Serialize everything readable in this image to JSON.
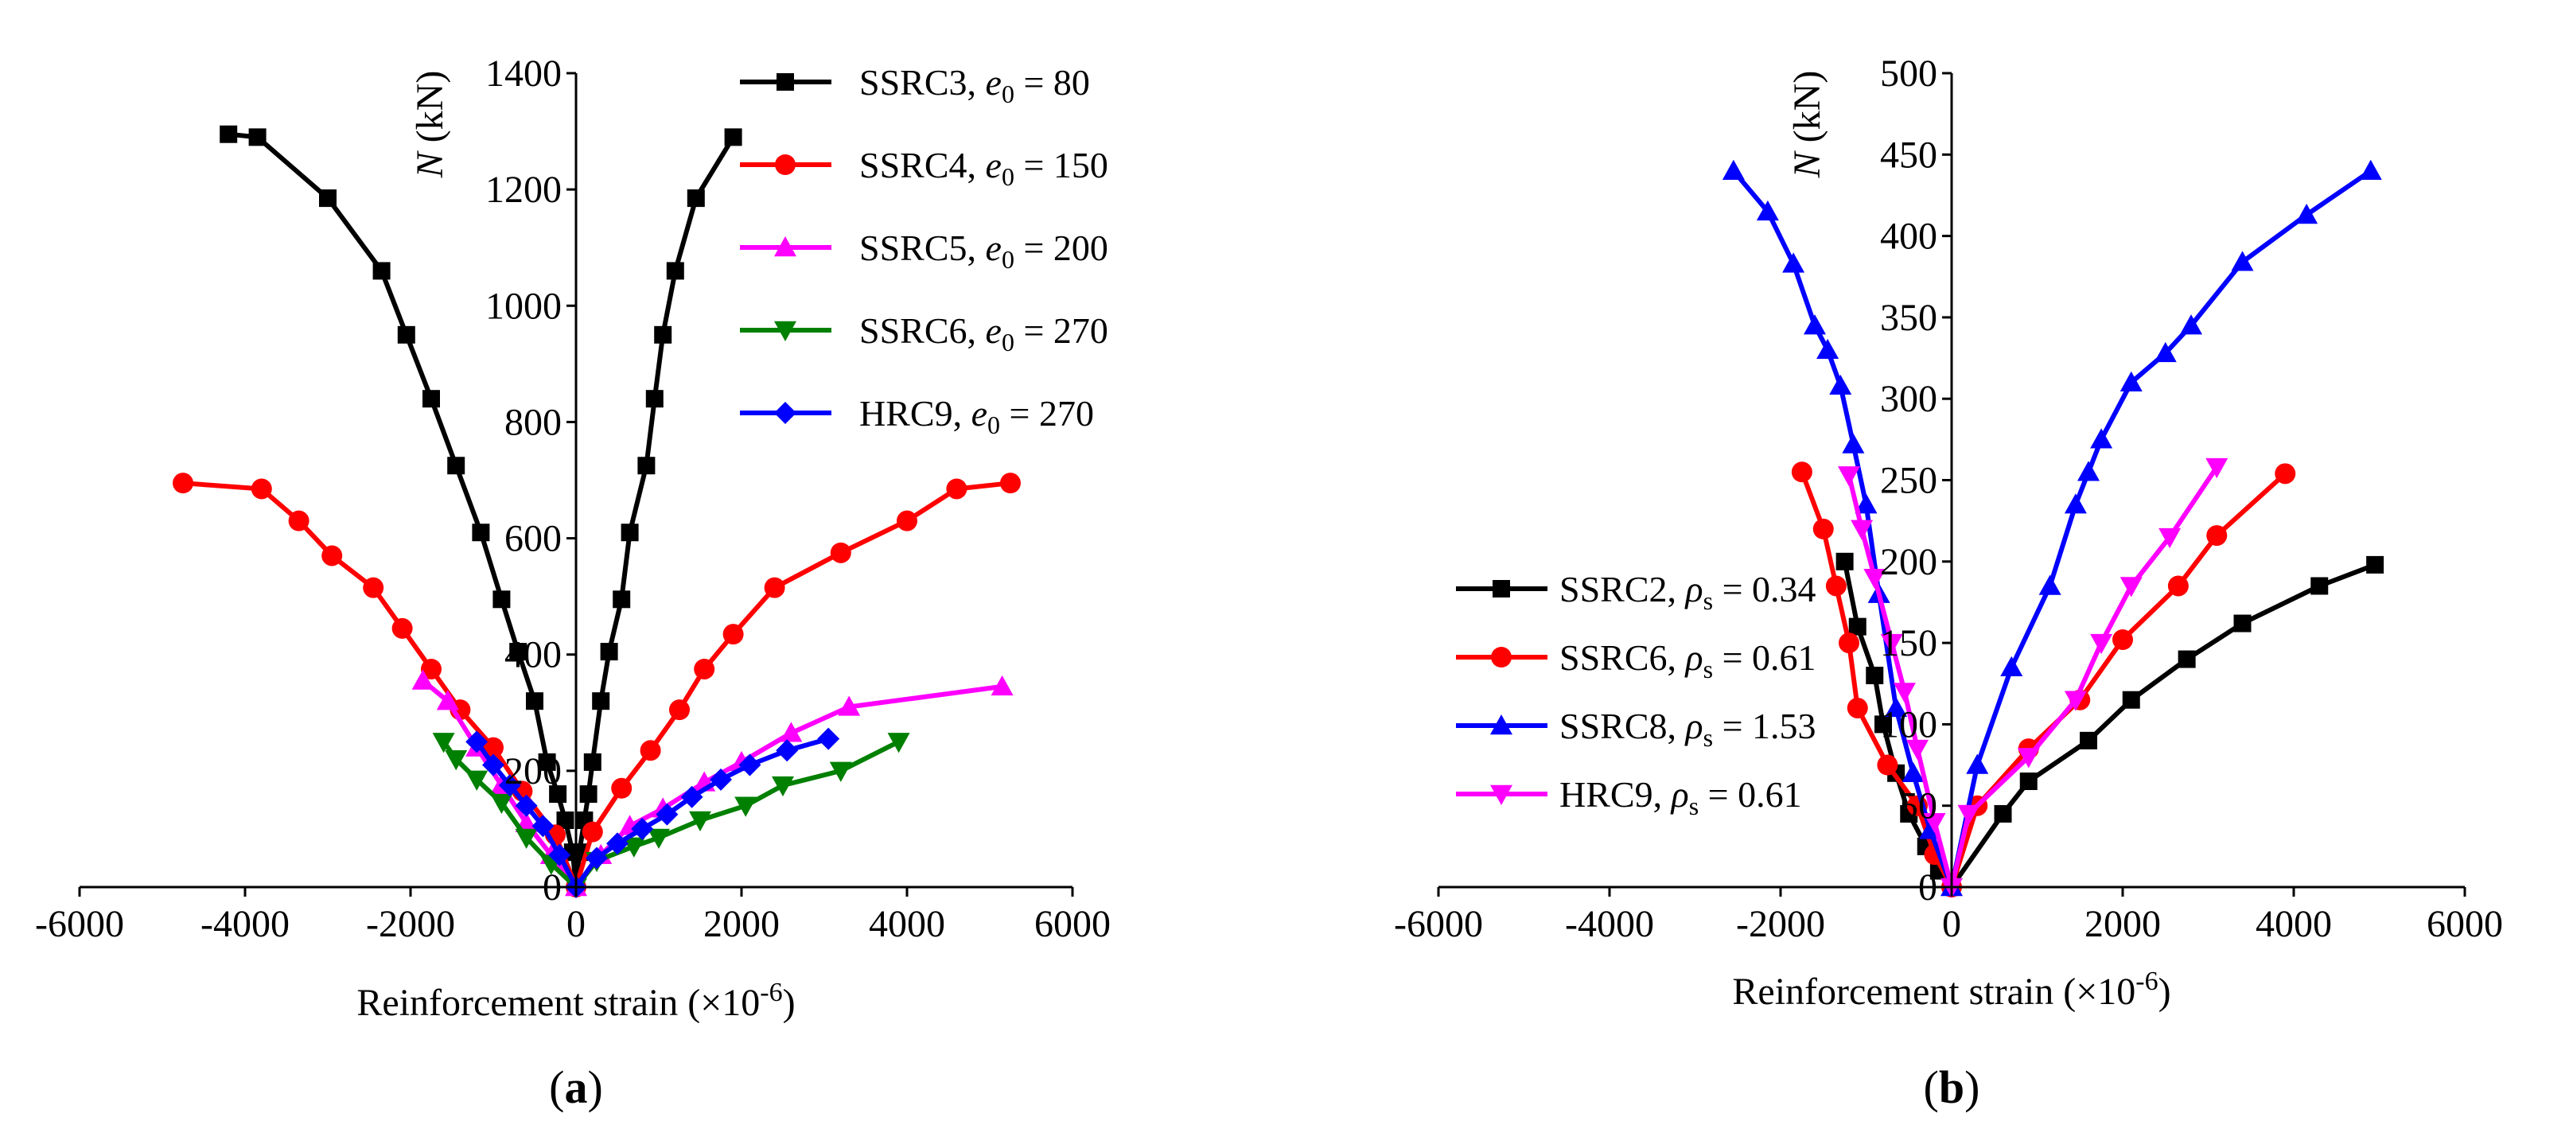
{
  "chart_data": [
    {
      "panel": "a",
      "panel_label": {
        "open": "(",
        "letter": "a",
        "close": ")"
      },
      "type": "line",
      "xlabel_main": "Reinforcement strain (×10",
      "xlabel_exp": "-6",
      "xlabel_close": ")",
      "ylabel_italic": "N",
      "ylabel_unit": " (kN)",
      "xlim": [
        -6000,
        6000
      ],
      "ylim": [
        0,
        1400
      ],
      "xticks": [
        -6000,
        -4000,
        -2000,
        0,
        2000,
        4000,
        6000
      ],
      "yticks": [
        0,
        200,
        400,
        600,
        800,
        1000,
        1200,
        1400
      ],
      "legend_position": "top-right",
      "series": [
        {
          "name": "SSRC3",
          "param": "e",
          "param_sub": "0",
          "param_value": "80",
          "color": "#000000",
          "marker": "square",
          "points": [
            [
              -4200,
              1295
            ],
            [
              -3850,
              1290
            ],
            [
              -3000,
              1185
            ],
            [
              -2350,
              1060
            ],
            [
              -2050,
              950
            ],
            [
              -1750,
              840
            ],
            [
              -1450,
              725
            ],
            [
              -1150,
              610
            ],
            [
              -900,
              495
            ],
            [
              -700,
              405
            ],
            [
              -500,
              320
            ],
            [
              -350,
              215
            ],
            [
              -220,
              160
            ],
            [
              -130,
              115
            ],
            [
              -40,
              60
            ],
            [
              0,
              0
            ],
            [
              40,
              60
            ],
            [
              100,
              115
            ],
            [
              150,
              160
            ],
            [
              200,
              215
            ],
            [
              300,
              320
            ],
            [
              400,
              405
            ],
            [
              550,
              495
            ],
            [
              650,
              610
            ],
            [
              850,
              725
            ],
            [
              950,
              840
            ],
            [
              1050,
              950
            ],
            [
              1200,
              1060
            ],
            [
              1450,
              1185
            ],
            [
              1900,
              1290
            ]
          ]
        },
        {
          "name": "SSRC4",
          "param": "e",
          "param_sub": "0",
          "param_value": "150",
          "color": "#ff0000",
          "marker": "circle",
          "points": [
            [
              -4750,
              695
            ],
            [
              -3800,
              685
            ],
            [
              -3350,
              630
            ],
            [
              -2950,
              570
            ],
            [
              -2450,
              515
            ],
            [
              -2100,
              445
            ],
            [
              -1750,
              375
            ],
            [
              -1400,
              305
            ],
            [
              -1000,
              240
            ],
            [
              -650,
              165
            ],
            [
              -250,
              90
            ],
            [
              0,
              0
            ],
            [
              200,
              95
            ],
            [
              550,
              170
            ],
            [
              900,
              235
            ],
            [
              1250,
              305
            ],
            [
              1550,
              375
            ],
            [
              1900,
              435
            ],
            [
              2400,
              515
            ],
            [
              3200,
              575
            ],
            [
              4000,
              630
            ],
            [
              4600,
              685
            ],
            [
              5250,
              695
            ]
          ]
        },
        {
          "name": "SSRC5",
          "param": "e",
          "param_sub": "0",
          "param_value": "200",
          "color": "#ff00ff",
          "marker": "triangle-up",
          "points": [
            [
              -1850,
              355
            ],
            [
              -1550,
              320
            ],
            [
              -1200,
              240
            ],
            [
              -900,
              175
            ],
            [
              -600,
              110
            ],
            [
              -300,
              55
            ],
            [
              0,
              0
            ],
            [
              300,
              55
            ],
            [
              650,
              105
            ],
            [
              1050,
              135
            ],
            [
              1550,
              180
            ],
            [
              2000,
              215
            ],
            [
              2600,
              265
            ],
            [
              3300,
              310
            ],
            [
              5150,
              345
            ]
          ]
        },
        {
          "name": "SSRC6",
          "param": "e",
          "param_sub": "0",
          "param_value": "270",
          "color": "#008000",
          "marker": "triangle-down",
          "points": [
            [
              -1600,
              250
            ],
            [
              -1450,
              220
            ],
            [
              -1200,
              185
            ],
            [
              -900,
              145
            ],
            [
              -600,
              85
            ],
            [
              -300,
              40
            ],
            [
              0,
              0
            ],
            [
              250,
              45
            ],
            [
              700,
              70
            ],
            [
              1000,
              85
            ],
            [
              1500,
              115
            ],
            [
              2050,
              140
            ],
            [
              2500,
              175
            ],
            [
              3200,
              200
            ],
            [
              3900,
              250
            ]
          ]
        },
        {
          "name": "HRC9",
          "param": "e",
          "param_sub": "0",
          "param_value": "270",
          "color": "#0000ff",
          "marker": "diamond",
          "points": [
            [
              -1200,
              250
            ],
            [
              -1000,
              210
            ],
            [
              -800,
              175
            ],
            [
              -600,
              140
            ],
            [
              -400,
              105
            ],
            [
              -200,
              55
            ],
            [
              0,
              0
            ],
            [
              250,
              50
            ],
            [
              500,
              75
            ],
            [
              800,
              100
            ],
            [
              1100,
              125
            ],
            [
              1400,
              155
            ],
            [
              1750,
              185
            ],
            [
              2100,
              210
            ],
            [
              2550,
              235
            ],
            [
              3050,
              255
            ]
          ]
        }
      ]
    },
    {
      "panel": "b",
      "panel_label": {
        "open": "(",
        "letter": "b",
        "close": ")"
      },
      "type": "line",
      "xlabel_main": "Reinforcement strain (×10",
      "xlabel_exp": "-6",
      "xlabel_close": ")",
      "ylabel_italic": "N",
      "ylabel_unit": " (kN)",
      "xlim": [
        -6000,
        6000
      ],
      "ylim": [
        0,
        500
      ],
      "xticks": [
        -6000,
        -4000,
        -2000,
        0,
        2000,
        4000,
        6000
      ],
      "yticks": [
        0,
        50,
        100,
        150,
        200,
        250,
        300,
        350,
        400,
        450,
        500
      ],
      "legend_position": "left",
      "series": [
        {
          "name": "SSRC2",
          "param": "ρ",
          "param_sub": "s",
          "param_value": "0.34",
          "color": "#000000",
          "marker": "square",
          "points": [
            [
              -1250,
              200
            ],
            [
              -1100,
              160
            ],
            [
              -900,
              130
            ],
            [
              -800,
              100
            ],
            [
              -650,
              70
            ],
            [
              -500,
              45
            ],
            [
              -300,
              25
            ],
            [
              -150,
              10
            ],
            [
              0,
              0
            ],
            [
              600,
              45
            ],
            [
              900,
              65
            ],
            [
              1600,
              90
            ],
            [
              2100,
              115
            ],
            [
              2750,
              140
            ],
            [
              3400,
              162
            ],
            [
              4300,
              185
            ],
            [
              4950,
              198
            ]
          ]
        },
        {
          "name": "SSRC6",
          "param": "ρ",
          "param_sub": "s",
          "param_value": "0.61",
          "color": "#ff0000",
          "marker": "circle",
          "points": [
            [
              -1750,
              255
            ],
            [
              -1500,
              220
            ],
            [
              -1350,
              185
            ],
            [
              -1200,
              150
            ],
            [
              -1100,
              110
            ],
            [
              -750,
              75
            ],
            [
              -400,
              50
            ],
            [
              -200,
              20
            ],
            [
              0,
              0
            ],
            [
              300,
              50
            ],
            [
              900,
              85
            ],
            [
              1500,
              115
            ],
            [
              2000,
              152
            ],
            [
              2650,
              185
            ],
            [
              3100,
              216
            ],
            [
              3900,
              254
            ]
          ]
        },
        {
          "name": "SSRC8",
          "param": "ρ",
          "param_sub": "s",
          "param_value": "1.53",
          "color": "#0000ff",
          "marker": "triangle-up",
          "points": [
            [
              -2550,
              440
            ],
            [
              -2150,
              415
            ],
            [
              -1850,
              383
            ],
            [
              -1600,
              345
            ],
            [
              -1450,
              330
            ],
            [
              -1300,
              308
            ],
            [
              -1150,
              272
            ],
            [
              -1000,
              235
            ],
            [
              -850,
              180
            ],
            [
              -650,
              110
            ],
            [
              -450,
              70
            ],
            [
              -250,
              35
            ],
            [
              0,
              0
            ],
            [
              300,
              75
            ],
            [
              700,
              135
            ],
            [
              1150,
              185
            ],
            [
              1450,
              235
            ],
            [
              1600,
              255
            ],
            [
              1750,
              275
            ],
            [
              2100,
              310
            ],
            [
              2500,
              328
            ],
            [
              2800,
              345
            ],
            [
              3400,
              384
            ],
            [
              4150,
              413
            ],
            [
              4900,
              440
            ]
          ]
        },
        {
          "name": "HRC9",
          "param": "ρ",
          "param_sub": "s",
          "param_value": "0.61",
          "color": "#ff00ff",
          "marker": "triangle-down",
          "points": [
            [
              -1200,
              253
            ],
            [
              -1050,
              220
            ],
            [
              -900,
              190
            ],
            [
              -700,
              150
            ],
            [
              -550,
              120
            ],
            [
              -400,
              85
            ],
            [
              -200,
              40
            ],
            [
              0,
              0
            ],
            [
              200,
              45
            ],
            [
              900,
              80
            ],
            [
              1450,
              115
            ],
            [
              1750,
              150
            ],
            [
              2100,
              185
            ],
            [
              2550,
              215
            ],
            [
              3100,
              258
            ]
          ]
        }
      ]
    }
  ]
}
